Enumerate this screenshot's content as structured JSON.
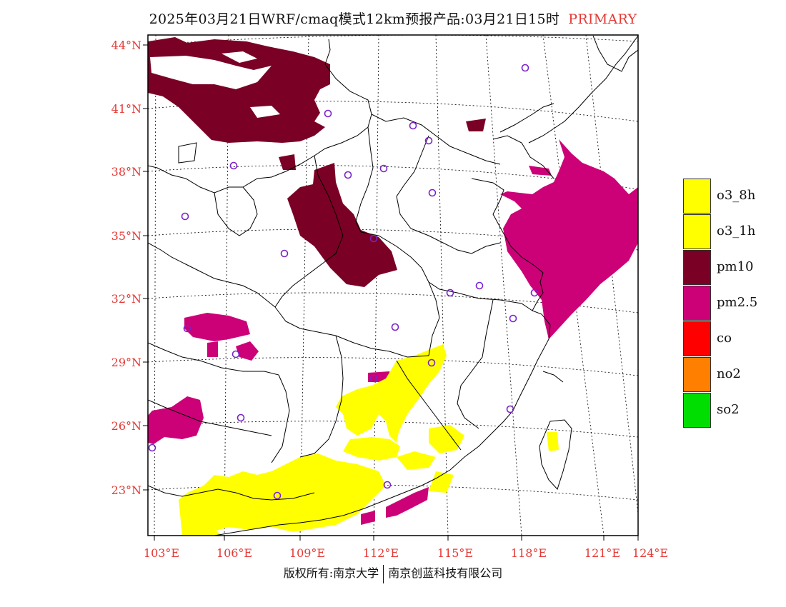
{
  "title": {
    "main": "2025年03月21日WRF/cmaq模式12km预报产品:03月21日15时",
    "tag": "PRIMARY"
  },
  "axes": {
    "lat_labels": [
      "44°N",
      "41°N",
      "38°N",
      "35°N",
      "32°N",
      "29°N",
      "26°N",
      "23°N"
    ],
    "lon_labels": [
      "103°E",
      "106°E",
      "109°E",
      "112°E",
      "115°E",
      "118°E",
      "121°E",
      "124°E"
    ]
  },
  "legend": [
    {
      "label": "o3_8h",
      "color": "#ffff00"
    },
    {
      "label": "o3_1h",
      "color": "#ffff00"
    },
    {
      "label": "pm10",
      "color": "#7a0026"
    },
    {
      "label": "pm2.5",
      "color": "#cc0077"
    },
    {
      "label": "co",
      "color": "#ff0000"
    },
    {
      "label": "no2",
      "color": "#ff7f00"
    },
    {
      "label": "so2",
      "color": "#00dd00"
    }
  ],
  "colors": {
    "label_red": "#e53935",
    "station_marker": "#7a22cc",
    "boundary": "#000000"
  },
  "credits": {
    "left": "版权所有:南京大学",
    "right": "南京创蓝科技有限公司"
  }
}
